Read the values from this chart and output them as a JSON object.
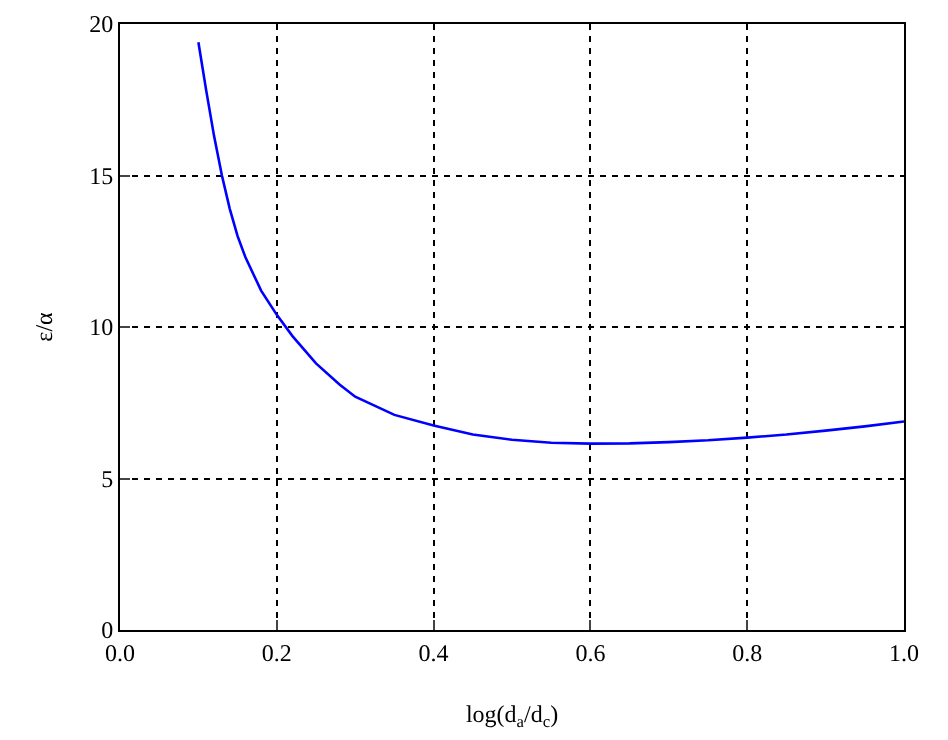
{
  "chart_data": {
    "type": "line",
    "xlabel": "log(d$_{a}$/d$_{c}$)",
    "ylabel": "ε/α",
    "x": [
      0.1,
      0.11,
      0.12,
      0.13,
      0.14,
      0.15,
      0.16,
      0.18,
      0.2,
      0.22,
      0.25,
      0.28,
      0.3,
      0.35,
      0.4,
      0.45,
      0.5,
      0.55,
      0.6,
      0.65,
      0.7,
      0.75,
      0.8,
      0.85,
      0.9,
      0.95,
      1.0
    ],
    "series": [
      {
        "color": "#0000ff",
        "values": [
          19.4,
          17.8,
          16.3,
          15.0,
          13.9,
          13.0,
          12.3,
          11.2,
          10.4,
          9.7,
          8.8,
          8.1,
          7.7,
          7.1,
          6.75,
          6.45,
          6.28,
          6.18,
          6.15,
          6.16,
          6.2,
          6.26,
          6.35,
          6.45,
          6.58,
          6.72,
          6.88
        ]
      }
    ],
    "xlim": [
      0,
      1
    ],
    "ylim": [
      0,
      20
    ],
    "xticks": [
      {
        "value": 0,
        "label": "0.0"
      },
      0.2,
      0.4,
      0.6,
      0.8,
      {
        "value": 1,
        "label": "1.0"
      }
    ],
    "yticks": [
      0,
      5,
      10,
      15,
      20
    ],
    "grid": true,
    "marker": "none",
    "line_style": "solid"
  }
}
